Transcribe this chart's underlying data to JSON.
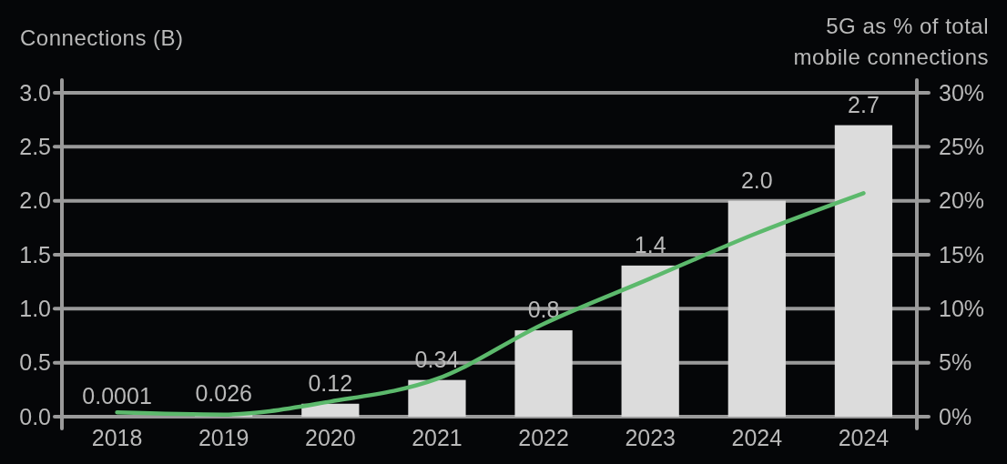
{
  "chart_data": {
    "type": "bar",
    "ylabel": "Connections (B)",
    "y2label": "5G as % of total mobile connections",
    "categories": [
      "2018",
      "2019",
      "2020",
      "2021",
      "2022",
      "2023",
      "2024",
      "2024"
    ],
    "series": [
      {
        "color": "#dcdcdc",
        "values": [
          0.0001,
          0.026,
          0.12,
          0.34,
          0.8,
          1.4,
          2.0,
          2.7
        ],
        "value_labels": [
          "0.0001",
          "0.026",
          "0.12",
          "0.34",
          "0.8",
          "1.4",
          "2.0",
          "2.7"
        ]
      },
      {
        "type": "line",
        "axis": "y2",
        "color": "#5cb96c",
        "values": [
          0.4,
          0.2,
          1.4,
          3.5,
          8.6,
          12.8,
          17.0,
          20.7
        ]
      }
    ],
    "ylim": [
      0,
      3
    ],
    "yticks": [
      {
        "value": 0,
        "label": "0.0"
      },
      0.5,
      {
        "value": 1,
        "label": "1.0"
      },
      1.5,
      {
        "value": 2,
        "label": "2.0"
      },
      2.5,
      {
        "value": 3,
        "label": "3.0"
      }
    ],
    "y2lim": [
      0,
      30
    ],
    "y2ticks": [
      {
        "value": 0,
        "label": "0%"
      },
      {
        "value": 5,
        "label": "5%"
      },
      {
        "value": 10,
        "label": "10%"
      },
      {
        "value": 15,
        "label": "15%"
      },
      {
        "value": 20,
        "label": "20%"
      },
      {
        "value": 25,
        "label": "25%"
      },
      {
        "value": 30,
        "label": "30%"
      }
    ],
    "grid": "y"
  }
}
